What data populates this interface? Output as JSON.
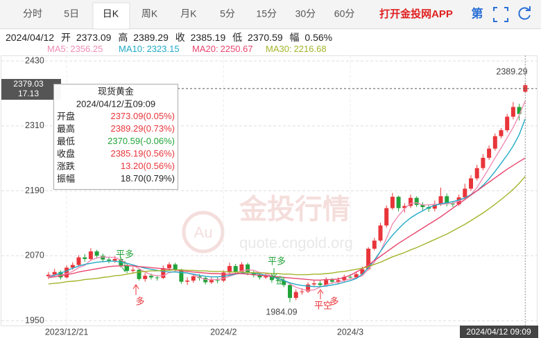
{
  "ui": {
    "tabs": [
      "分时",
      "5日",
      "日K",
      "周K",
      "月K",
      "5分",
      "15分",
      "30分",
      "60分"
    ],
    "selected_tab": "日K",
    "app_link": "打开金投网APP",
    "icon_text": "第",
    "info": {
      "date": "2024/04/12",
      "open_label": "开",
      "high_label": "高",
      "close_label": "收",
      "low_label": "低",
      "range_label": "幅",
      "range": "0.56%"
    },
    "tooltip": {
      "title": "现货黄金",
      "time": "2024/04/12/五09:09",
      "rows": [
        {
          "label": "开盘",
          "change": "(0.05%)"
        },
        {
          "label": "最高",
          "change": "(0.73%)"
        },
        {
          "label": "最低",
          "change": "(-0.06%)"
        },
        {
          "label": "收盘",
          "change": "(0.56%)"
        },
        {
          "label": "涨跌",
          "value": "13.20",
          "change": "(0.56%)"
        },
        {
          "label": "振幅",
          "value": "18.70",
          "change": "(0.79%)"
        }
      ]
    },
    "crosshair": {
      "price": 2379.03,
      "change": "17.13",
      "time": "2024/04/12 09:09"
    },
    "watermark": {
      "brand": "金投行情",
      "logo": "Au",
      "url": "quote.cngold.org"
    },
    "signals": [
      "平多",
      "多",
      "平多",
      "空",
      "平空",
      "多"
    ]
  },
  "chart_data": {
    "type": "candlestick",
    "up_color": "#e8353a",
    "down_color": "#22a33a",
    "ylim": [
      1940,
      2440
    ],
    "yticks": [
      1950,
      2070,
      2190,
      2310,
      2430
    ],
    "grid": true,
    "categories": [
      null,
      null,
      null,
      "2023/12/21",
      null,
      null,
      null,
      null,
      null,
      null,
      null,
      null,
      null,
      null,
      null,
      null,
      null,
      null,
      null,
      null,
      null,
      null,
      null,
      null,
      null,
      null,
      null,
      null,
      null,
      "2024/2",
      null,
      null,
      null,
      null,
      null,
      null,
      null,
      null,
      null,
      null,
      null,
      null,
      null,
      null,
      null,
      null,
      null,
      null,
      null,
      null,
      "2024/3",
      null,
      null,
      null,
      null,
      null,
      null,
      null,
      null,
      null,
      null,
      null,
      null,
      null,
      null,
      null,
      null,
      null,
      null,
      null,
      null,
      null,
      null,
      null,
      null,
      null,
      null,
      null,
      null,
      null
    ],
    "open": [
      2032,
      2035,
      2040,
      2030,
      2048,
      2053,
      2067,
      2064,
      2078,
      2070,
      2063,
      2061,
      2064,
      2052,
      2042,
      2044,
      2027,
      2033,
      2030,
      2029,
      2047,
      2054,
      2043,
      2022,
      2024,
      2032,
      2029,
      2021,
      2025,
      2024,
      2039,
      2051,
      2040,
      2054,
      2038,
      2034,
      2030,
      2032,
      2025,
      2024,
      2016,
      1992,
      2003,
      2004,
      2017,
      2019,
      2016,
      2025,
      2022,
      2025,
      2031,
      2030,
      2036,
      2045,
      2083,
      2098,
      2126,
      2158,
      2179,
      2158,
      2162,
      2177,
      2164,
      2160,
      2157,
      2165,
      2180,
      2166,
      2165,
      2178,
      2194,
      2213,
      2232,
      2251,
      2268,
      2291,
      2302,
      2327,
      2345,
      2373.09
    ],
    "high": [
      2040,
      2046,
      2043,
      2052,
      2058,
      2071,
      2073,
      2084,
      2081,
      2074,
      2068,
      2069,
      2067,
      2055,
      2049,
      2047,
      2038,
      2037,
      2034,
      2052,
      2058,
      2057,
      2046,
      2030,
      2036,
      2036,
      2032,
      2030,
      2030,
      2043,
      2057,
      2055,
      2058,
      2057,
      2042,
      2038,
      2037,
      2035,
      2031,
      2028,
      2020,
      2008,
      2010,
      2021,
      2025,
      2024,
      2030,
      2029,
      2030,
      2035,
      2036,
      2041,
      2050,
      2086,
      2103,
      2131,
      2163,
      2186,
      2181,
      2167,
      2183,
      2180,
      2169,
      2165,
      2172,
      2196,
      2185,
      2171,
      2183,
      2203,
      2219,
      2238,
      2258,
      2274,
      2296,
      2306,
      2332,
      2354,
      2351,
      2389.29
    ],
    "low": [
      2027,
      2031,
      2026,
      2028,
      2044,
      2050,
      2059,
      2060,
      2065,
      2058,
      2056,
      2057,
      2048,
      2038,
      2037,
      2024,
      2022,
      2026,
      2024,
      2027,
      2043,
      2039,
      2018,
      2016,
      2020,
      2024,
      2017,
      2018,
      2019,
      2021,
      2036,
      2035,
      2036,
      2034,
      2030,
      2026,
      2027,
      2020,
      2019,
      2012,
      1984.09,
      1988,
      1998,
      2001,
      2013,
      2012,
      2013,
      2018,
      2019,
      2021,
      2026,
      2027,
      2033,
      2043,
      2080,
      2095,
      2122,
      2155,
      2152,
      2150,
      2158,
      2160,
      2154,
      2151,
      2152,
      2162,
      2161,
      2160,
      2162,
      2175,
      2190,
      2209,
      2228,
      2247,
      2264,
      2287,
      2298,
      2322,
      2320,
      2370.59
    ],
    "close": [
      2035,
      2040,
      2030,
      2048,
      2053,
      2067,
      2064,
      2078,
      2070,
      2063,
      2061,
      2064,
      2052,
      2042,
      2044,
      2027,
      2033,
      2030,
      2029,
      2047,
      2054,
      2043,
      2022,
      2024,
      2032,
      2029,
      2021,
      2025,
      2024,
      2039,
      2051,
      2040,
      2054,
      2038,
      2034,
      2030,
      2032,
      2025,
      2024,
      2016,
      1992,
      2003,
      2004,
      2017,
      2019,
      2016,
      2025,
      2022,
      2025,
      2031,
      2030,
      2036,
      2045,
      2083,
      2098,
      2126,
      2158,
      2179,
      2158,
      2162,
      2177,
      2164,
      2160,
      2157,
      2165,
      2180,
      2166,
      2165,
      2178,
      2194,
      2213,
      2232,
      2251,
      2268,
      2291,
      2302,
      2327,
      2345,
      2332,
      2385.19
    ],
    "series": [
      {
        "name": "MA5:",
        "color": "#f08cb4",
        "values": [
          2032,
          2035,
          2034,
          2037,
          2041,
          2048,
          2052,
          2062,
          2066,
          2068,
          2067,
          2067,
          2062,
          2056,
          2053,
          2046,
          2040,
          2035,
          2033,
          2033,
          2039,
          2041,
          2039,
          2038,
          2035,
          2030,
          2026,
          2026,
          2026,
          2028,
          2032,
          2036,
          2042,
          2044,
          2043,
          2039,
          2038,
          2032,
          2029,
          2025,
          2018,
          2012,
          2008,
          2006,
          2007,
          2012,
          2016,
          2020,
          2021,
          2024,
          2027,
          2029,
          2033,
          2045,
          2058,
          2078,
          2102,
          2129,
          2144,
          2157,
          2167,
          2168,
          2164,
          2164,
          2165,
          2165,
          2166,
          2167,
          2171,
          2177,
          2183,
          2196,
          2214,
          2232,
          2251,
          2269,
          2288,
          2307,
          2330,
          2356.25
        ]
      },
      {
        "name": "MA10:",
        "color": "#22aac6",
        "values": [
          2030,
          2034,
          2038,
          2042,
          2047,
          2051,
          2054,
          2056,
          2058,
          2059,
          2060,
          2060,
          2058,
          2056,
          2053,
          2050,
          2047,
          2045,
          2043,
          2041,
          2040,
          2040,
          2039,
          2038,
          2036,
          2034,
          2032,
          2031,
          2031,
          2032,
          2034,
          2036,
          2038,
          2039,
          2038,
          2036,
          2034,
          2031,
          2028,
          2024,
          2020,
          2017,
          2015,
          2014,
          2013,
          2013,
          2014,
          2016,
          2018,
          2021,
          2024,
          2028,
          2036,
          2048,
          2062,
          2078,
          2094,
          2108,
          2120,
          2131,
          2140,
          2147,
          2153,
          2159,
          2163,
          2166,
          2168,
          2170,
          2173,
          2177,
          2183,
          2190,
          2200,
          2212,
          2226,
          2241,
          2256,
          2273,
          2294,
          2323.15
        ]
      },
      {
        "name": "MA20:",
        "color": "#e8456e",
        "values": [
          2030,
          2031,
          2033,
          2035,
          2037,
          2040,
          2042,
          2044,
          2046,
          2048,
          2050,
          2051,
          2051,
          2052,
          2051,
          2050,
          2049,
          2048,
          2047,
          2046,
          2045,
          2044,
          2042,
          2041,
          2040,
          2039,
          2038,
          2037,
          2037,
          2036,
          2036,
          2037,
          2037,
          2036,
          2035,
          2034,
          2033,
          2032,
          2031,
          2030,
          2029,
          2028,
          2027,
          2026,
          2025,
          2025,
          2026,
          2026,
          2027,
          2030,
          2034,
          2040,
          2046,
          2053,
          2061,
          2069,
          2077,
          2085,
          2093,
          2100,
          2107,
          2114,
          2121,
          2128,
          2135,
          2142,
          2150,
          2158,
          2166,
          2174,
          2182,
          2190,
          2198,
          2206,
          2214,
          2222,
          2230,
          2237,
          2244,
          2250.67
        ]
      },
      {
        "name": "MA30:",
        "color": "#a3b42a",
        "values": [
          2018,
          2019,
          2020,
          2022,
          2023,
          2024,
          2026,
          2027,
          2028,
          2030,
          2031,
          2033,
          2034,
          2036,
          2038,
          2040,
          2041,
          2042,
          2042,
          2043,
          2043,
          2044,
          2044,
          2043,
          2043,
          2042,
          2042,
          2041,
          2041,
          2041,
          2040,
          2040,
          2040,
          2039,
          2039,
          2038,
          2038,
          2037,
          2037,
          2036,
          2036,
          2035,
          2035,
          2035,
          2036,
          2036,
          2037,
          2038,
          2040,
          2041,
          2043,
          2045,
          2047,
          2050,
          2054,
          2058,
          2063,
          2068,
          2072,
          2076,
          2081,
          2085,
          2090,
          2095,
          2100,
          2105,
          2110,
          2116,
          2122,
          2128,
          2135,
          2142,
          2149,
          2157,
          2165,
          2174,
          2183,
          2193,
          2204,
          2216.68
        ]
      }
    ]
  }
}
